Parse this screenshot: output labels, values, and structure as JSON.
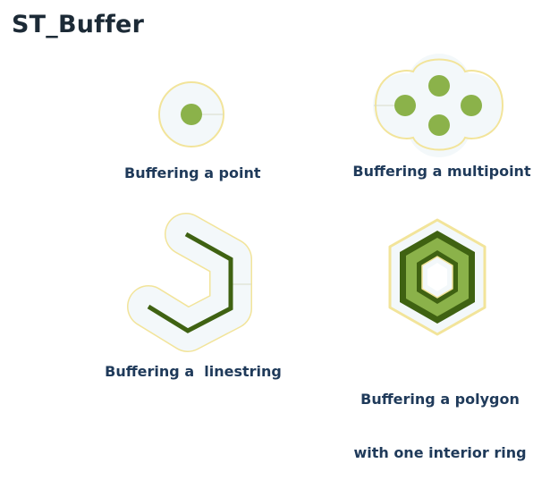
{
  "title": "ST_Buffer",
  "captions": {
    "point": "Buffering a point",
    "multipoint": "Buffering a multipoint",
    "linestring": "Buffering a  linestring",
    "polygon_line1": "Buffering a polygon",
    "polygon_line2": "with one interior ring"
  },
  "colors": {
    "buffer_fill": "#f3f8fa",
    "buffer_outline": "#f2e49a",
    "point_fill": "#8bb24a",
    "line_stroke": "#3f6212",
    "polygon_dark": "#3f6212",
    "polygon_light": "#8bb24a",
    "title_text": "#1c2a36",
    "caption_text": "#1f3a5a"
  }
}
